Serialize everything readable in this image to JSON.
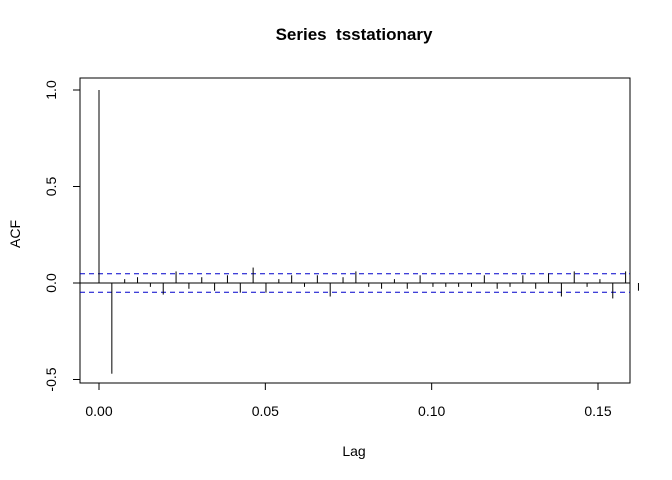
{
  "chart_data": {
    "type": "bar",
    "title": "Series  tsstationary",
    "xlabel": "Lag",
    "ylabel": "ACF",
    "xlim": [
      0.0,
      0.16
    ],
    "ylim": [
      -0.5,
      1.0
    ],
    "x_ticks": [
      0.0,
      0.05,
      0.1,
      0.15
    ],
    "x_tick_labels": [
      "0.00",
      "0.05",
      "0.10",
      "0.15"
    ],
    "y_ticks": [
      -0.5,
      0.0,
      0.5,
      1.0
    ],
    "y_tick_labels": [
      "-0.5",
      "0.0",
      "0.5",
      "1.0"
    ],
    "ci_bound": 0.048,
    "ci_color": "#0000CC",
    "bar_color": "#000000",
    "grid": false,
    "lag_step": 0.003861,
    "acf_values": [
      1.0,
      -0.47,
      0.02,
      0.03,
      -0.02,
      -0.06,
      0.06,
      -0.03,
      0.03,
      -0.04,
      0.04,
      -0.05,
      0.08,
      -0.05,
      0.02,
      0.04,
      -0.02,
      0.04,
      -0.07,
      0.03,
      0.06,
      -0.02,
      -0.03,
      0.02,
      -0.03,
      0.04,
      -0.02,
      -0.02,
      -0.02,
      -0.02,
      0.04,
      -0.03,
      -0.02,
      0.04,
      -0.03,
      0.05,
      -0.07,
      0.06,
      -0.02,
      0.02,
      -0.08,
      0.06,
      -0.04
    ]
  }
}
